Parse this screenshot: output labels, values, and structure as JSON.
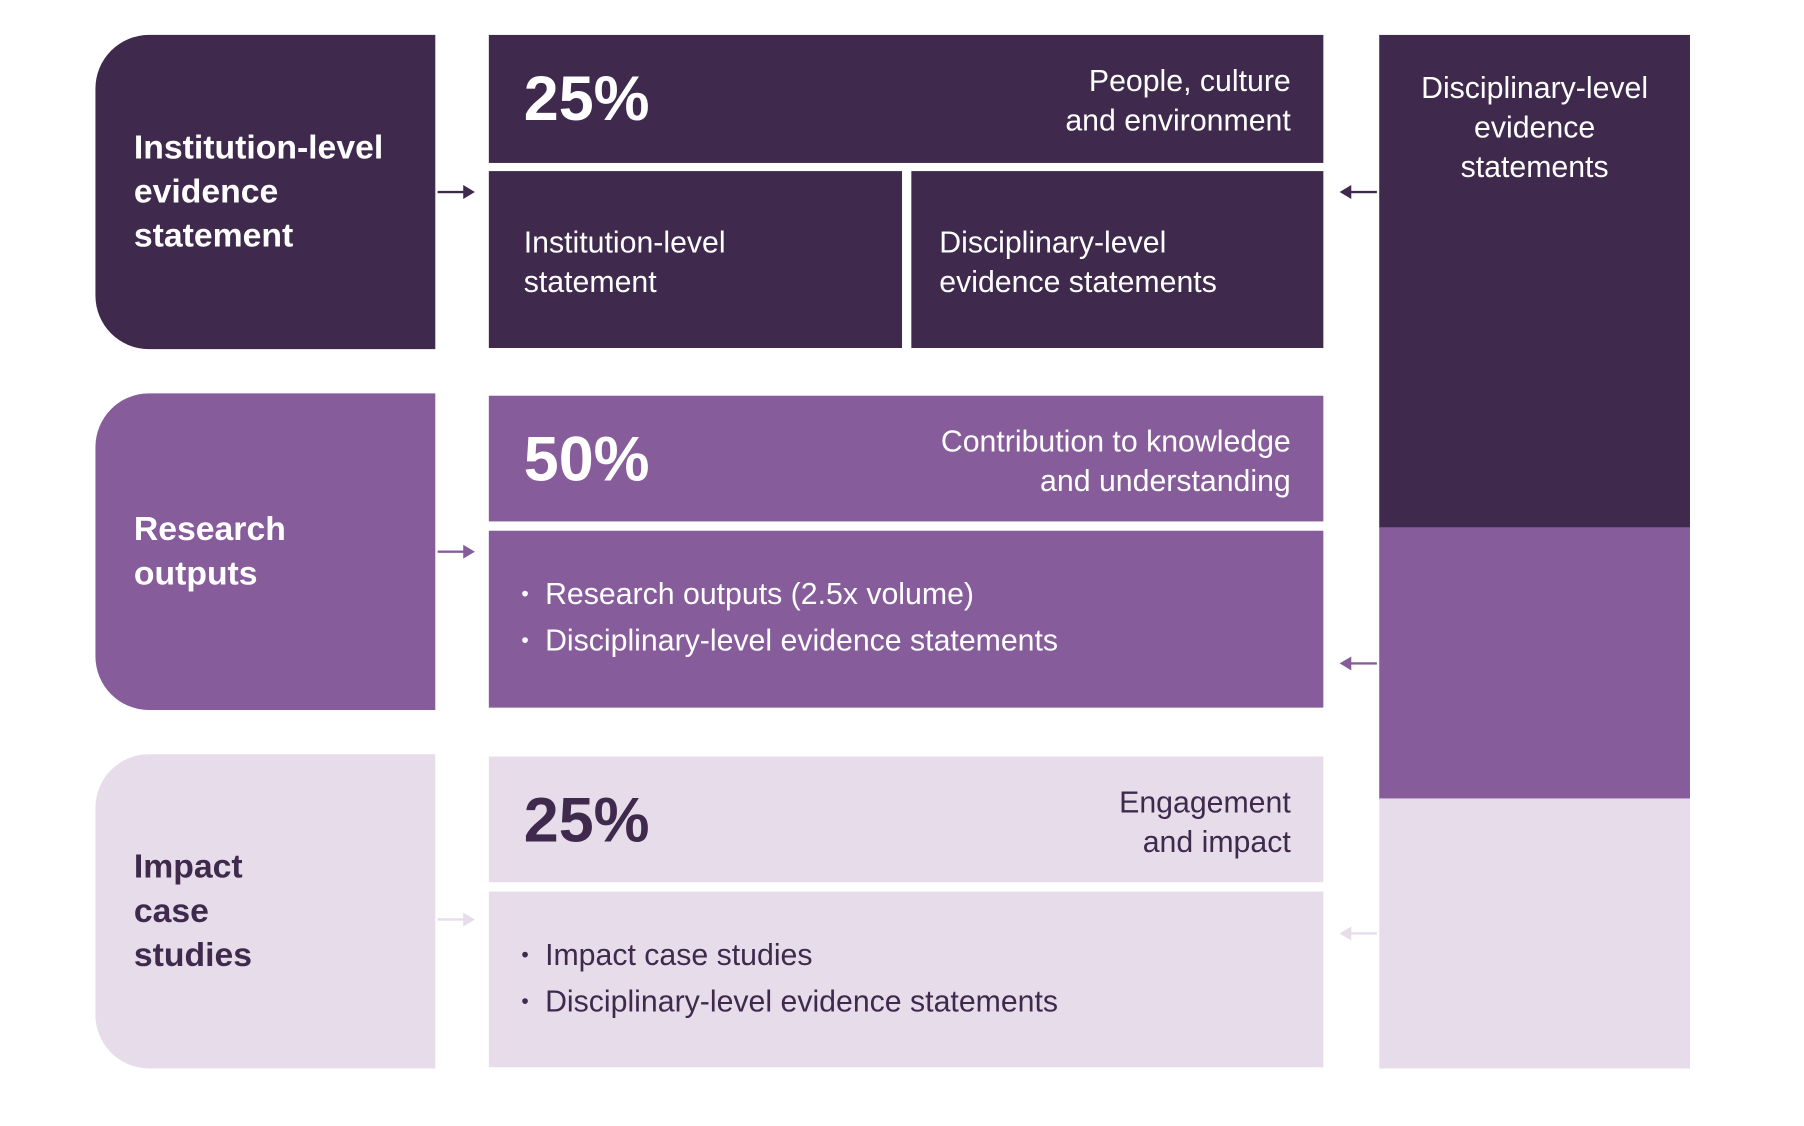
{
  "colors": {
    "dark": "#3f2a4d",
    "mid": "#865c9b",
    "light": "#e6dcea"
  },
  "rows": [
    {
      "left": "Institution-level evidence statement",
      "percent": "25%",
      "header": "People, culture and environment",
      "sub": [
        "Institution-level statement",
        "Disciplinary-level evidence statements"
      ]
    },
    {
      "left": "Research outputs",
      "percent": "50%",
      "header": "Contribution to knowledge and understanding",
      "bullets": [
        "Research outputs (2.5x volume)",
        "Disciplinary-level evidence statements"
      ]
    },
    {
      "left": "Impact case studies",
      "percent": "25%",
      "header": "Engagement and impact",
      "bullets": [
        "Impact case studies",
        "Disciplinary-level evidence statements"
      ]
    }
  ],
  "right": {
    "label": "Disciplinary-level evidence statements"
  }
}
